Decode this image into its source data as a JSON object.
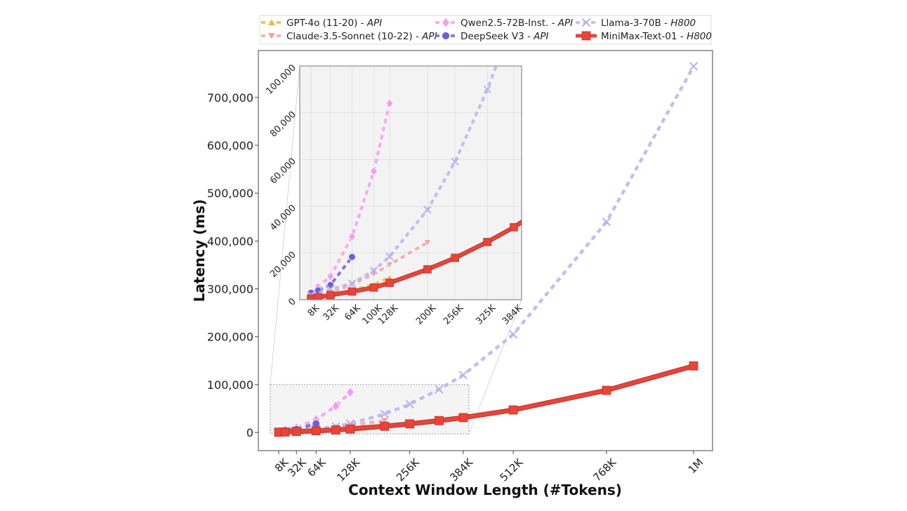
{
  "chart_data": {
    "type": "line",
    "xlabel": "Context Window Length (#Tokens)",
    "ylabel": "Latency (ms)",
    "x_scale": "power (compressed)",
    "x_ticks": [
      {
        "k": 8,
        "label": "8K"
      },
      {
        "k": 32,
        "label": "32K"
      },
      {
        "k": 64,
        "label": "64K"
      },
      {
        "k": 128,
        "label": "128K"
      },
      {
        "k": 256,
        "label": "256K"
      },
      {
        "k": 384,
        "label": "384K"
      },
      {
        "k": 512,
        "label": "512K"
      },
      {
        "k": 768,
        "label": "768K"
      },
      {
        "k": 1024,
        "label": "1M"
      }
    ],
    "y_ticks": [
      {
        "v": 0,
        "label": "0"
      },
      {
        "v": 100000,
        "label": "100,000"
      },
      {
        "v": 200000,
        "label": "200,000"
      },
      {
        "v": 300000,
        "label": "300,000"
      },
      {
        "v": 400000,
        "label": "400,000"
      },
      {
        "v": 500000,
        "label": "500,000"
      },
      {
        "v": 600000,
        "label": "600,000"
      },
      {
        "v": 700000,
        "label": "700,000"
      }
    ],
    "ylim": [
      -38000,
      798000
    ],
    "grid": false,
    "legend_position": "top (above plot)",
    "inset": {
      "x_ticks": [
        {
          "k": 8,
          "label": "8K"
        },
        {
          "k": 32,
          "label": "32K"
        },
        {
          "k": 64,
          "label": "64K"
        },
        {
          "k": 100,
          "label": "100K"
        },
        {
          "k": 128,
          "label": "128K"
        },
        {
          "k": 200,
          "label": "200K"
        },
        {
          "k": 256,
          "label": "256K"
        },
        {
          "k": 325,
          "label": "325K"
        },
        {
          "k": 384,
          "label": "384K"
        }
      ],
      "y_ticks": [
        {
          "v": 0,
          "label": "0"
        },
        {
          "v": 20000,
          "label": "20,000"
        },
        {
          "v": 40000,
          "label": "40,000"
        },
        {
          "v": 60000,
          "label": "60,000"
        },
        {
          "v": 80000,
          "label": "80,000"
        },
        {
          "v": 100000,
          "label": "100,000"
        }
      ],
      "ylim": [
        0,
        100000
      ],
      "grid": true
    },
    "series": [
      {
        "name": "GPT-4o (11-20)",
        "suffix": "API",
        "marker": "triangle-up",
        "color": "#f0b43c",
        "style": "dashed",
        "points": [
          [
            8,
            1000
          ],
          [
            32,
            2000
          ],
          [
            64,
            4000
          ],
          [
            100,
            6500
          ],
          [
            128,
            9500
          ]
        ]
      },
      {
        "name": "Claude-3.5-Sonnet (10-22)",
        "suffix": "API",
        "marker": "triangle-down",
        "color": "#f2a3a3",
        "style": "dashed",
        "points": [
          [
            8,
            1500
          ],
          [
            32,
            3000
          ],
          [
            64,
            6500
          ],
          [
            100,
            11000
          ],
          [
            128,
            15000
          ],
          [
            200,
            24500
          ]
        ]
      },
      {
        "name": "Qwen2.5-72B-Inst.",
        "suffix": "API",
        "marker": "diamond",
        "color": "#f59cf0",
        "style": "dashed",
        "points": [
          [
            8,
            3000
          ],
          [
            16,
            5500
          ],
          [
            32,
            10000
          ],
          [
            64,
            27000
          ],
          [
            100,
            55000
          ],
          [
            128,
            84000
          ]
        ]
      },
      {
        "name": "DeepSeek V3",
        "suffix": "API",
        "marker": "circle",
        "color": "#6f5fd6",
        "style": "dashed",
        "points": [
          [
            8,
            3000
          ],
          [
            16,
            4000
          ],
          [
            32,
            6300
          ],
          [
            64,
            18300
          ]
        ]
      },
      {
        "name": "Llama-3-70B",
        "suffix": "H800",
        "marker": "x",
        "color": "#b6b3ee",
        "style": "dashed",
        "points": [
          [
            8,
            2000
          ],
          [
            32,
            4500
          ],
          [
            64,
            7000
          ],
          [
            100,
            12500
          ],
          [
            128,
            18500
          ],
          [
            200,
            38500
          ],
          [
            256,
            59000
          ],
          [
            325,
            90000
          ],
          [
            384,
            120000
          ],
          [
            512,
            205000
          ],
          [
            768,
            440000
          ],
          [
            1024,
            765000
          ]
        ]
      },
      {
        "name": "MiniMax-Text-01",
        "suffix": "H800",
        "marker": "square",
        "color": "#e8453a",
        "style": "solid",
        "points": [
          [
            8,
            500
          ],
          [
            16,
            1000
          ],
          [
            32,
            2000
          ],
          [
            64,
            3500
          ],
          [
            100,
            5200
          ],
          [
            128,
            7200
          ],
          [
            200,
            13000
          ],
          [
            256,
            17900
          ],
          [
            325,
            24700
          ],
          [
            384,
            31000
          ],
          [
            512,
            47000
          ],
          [
            768,
            88000
          ],
          [
            1024,
            139000
          ]
        ]
      }
    ]
  }
}
